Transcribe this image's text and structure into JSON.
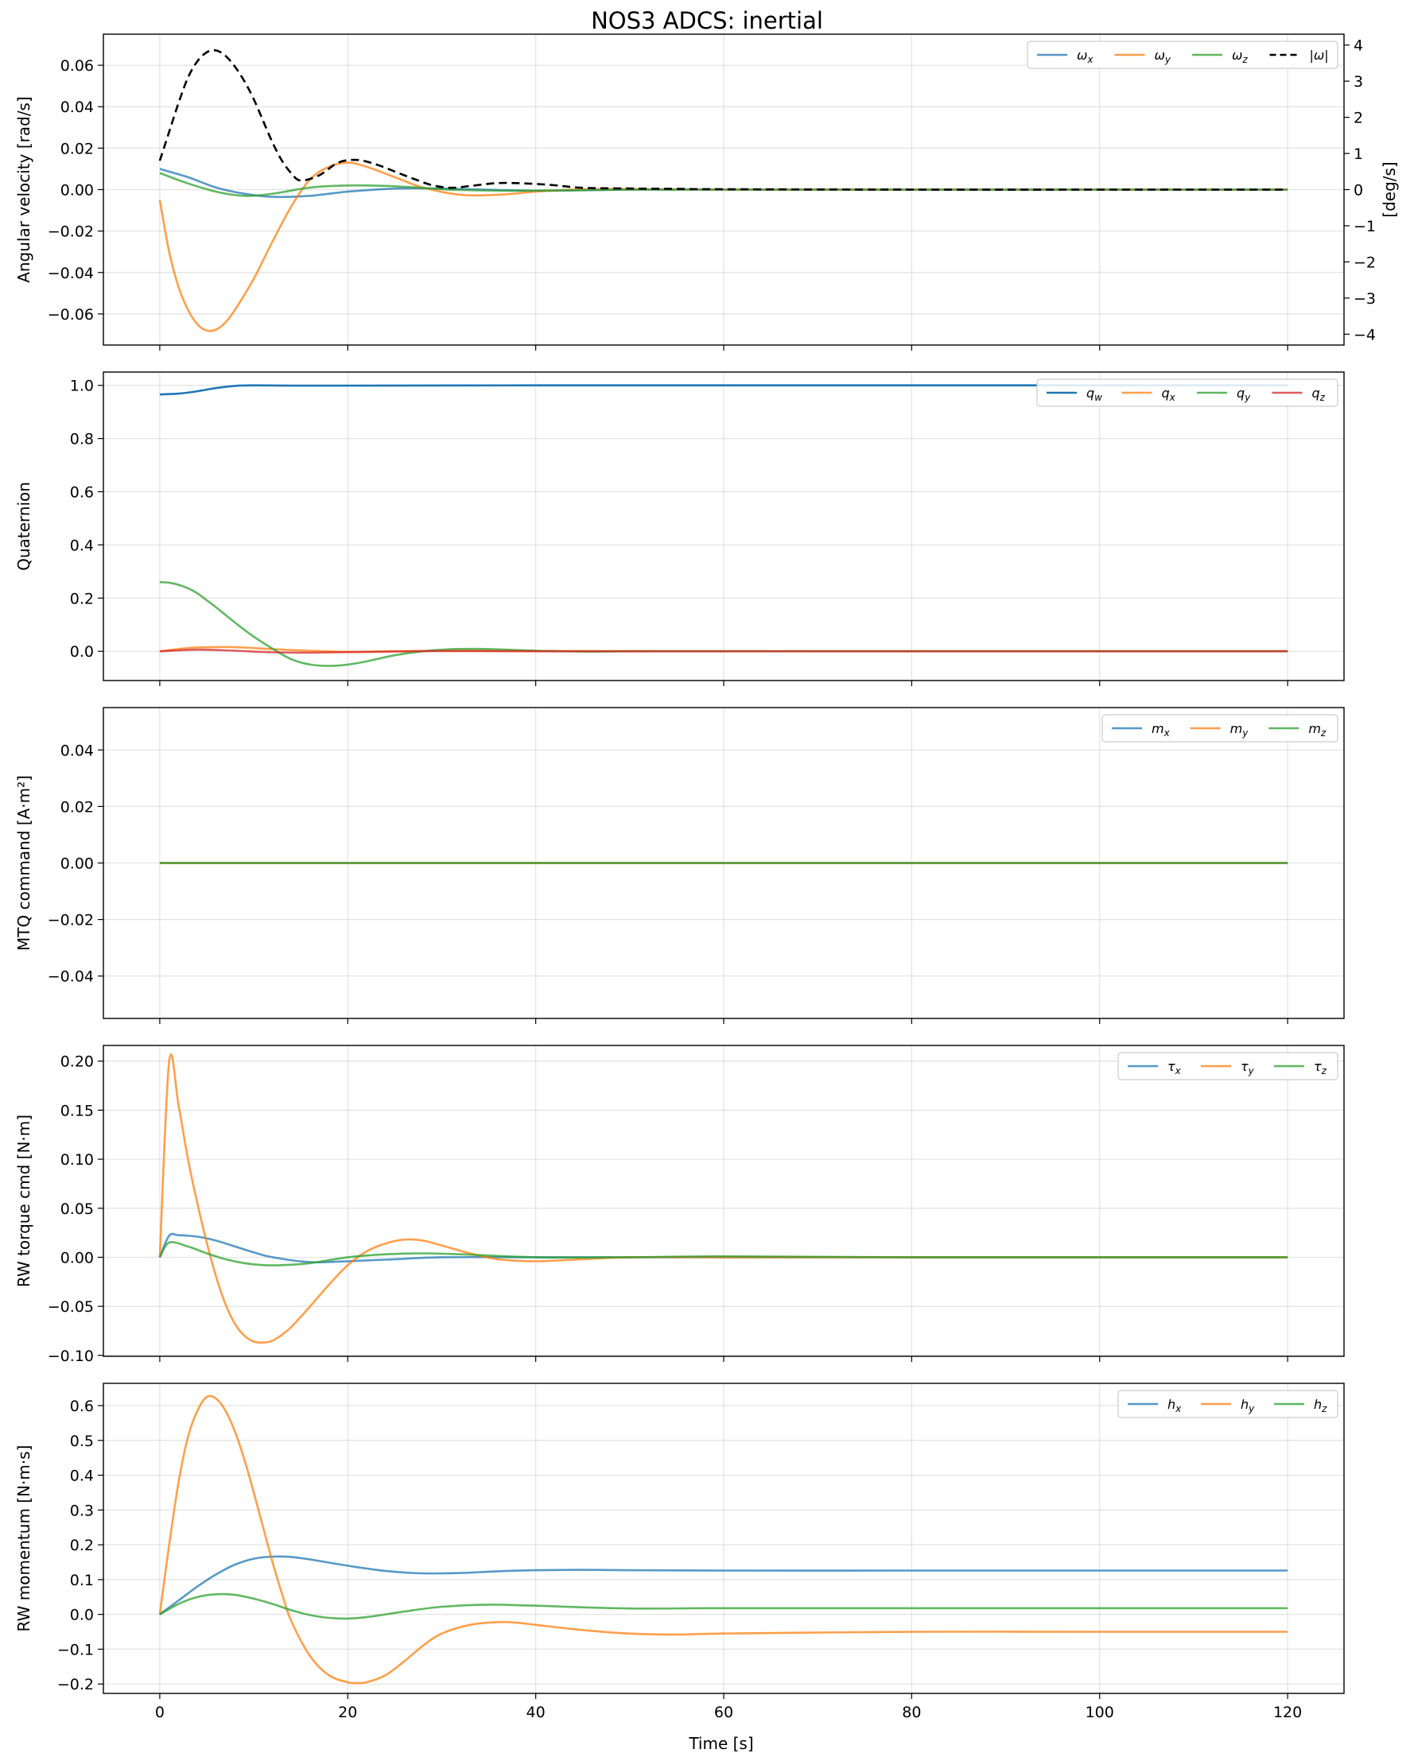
{
  "figure_title": "NOS3 ADCS: inertial",
  "xlabel": "Time [s]",
  "chart_data": [
    {
      "type": "line",
      "ylabel": "Angular velocity [rad/s]",
      "ylabel_right": "[deg/s]",
      "xlim": [
        -6,
        126
      ],
      "ylim": [
        -0.075,
        0.075
      ],
      "y2lim": [
        -4.3,
        4.3
      ],
      "xticks": [
        0,
        20,
        40,
        60,
        80,
        100,
        120
      ],
      "yticks": [
        -0.06,
        -0.04,
        -0.02,
        0.0,
        0.02,
        0.04,
        0.06
      ],
      "ytick_labels": [
        "−0.06",
        "−0.04",
        "−0.02",
        "0.00",
        "0.02",
        "0.04",
        "0.06"
      ],
      "y2ticks": [
        -4,
        -3,
        -2,
        -1,
        0,
        1,
        2,
        3,
        4
      ],
      "y2tick_labels": [
        "−4",
        "−3",
        "−2",
        "−1",
        "0",
        "1",
        "2",
        "3",
        "4"
      ],
      "grid": true,
      "legend": "top-right",
      "series": [
        {
          "name": "ω",
          "sub": "x",
          "color": "#1f77b4",
          "alpha": 0.75,
          "x": [
            0,
            3,
            6,
            9,
            12,
            16,
            20,
            25,
            30,
            40,
            50,
            60,
            80,
            100,
            120
          ],
          "y": [
            0.01,
            0.006,
            0.001,
            -0.002,
            -0.0035,
            -0.003,
            -0.001,
            0.0005,
            0.0005,
            -0.0005,
            0,
            0,
            0,
            0,
            0
          ]
        },
        {
          "name": "ω",
          "sub": "y",
          "color": "#ff7f0e",
          "alpha": 0.75,
          "x": [
            0,
            1,
            2,
            3,
            4,
            5,
            6,
            7,
            8,
            10,
            12,
            14,
            16,
            18,
            20,
            22,
            25,
            28,
            32,
            36,
            40,
            45,
            50,
            60,
            80,
            100,
            120
          ],
          "y": [
            -0.005,
            -0.03,
            -0.047,
            -0.058,
            -0.065,
            -0.068,
            -0.0675,
            -0.064,
            -0.058,
            -0.043,
            -0.025,
            -0.008,
            0.005,
            0.011,
            0.013,
            0.011,
            0.006,
            0.001,
            -0.0025,
            -0.0025,
            -0.001,
            0.0002,
            0.0003,
            0,
            0,
            0,
            0
          ]
        },
        {
          "name": "ω",
          "sub": "z",
          "color": "#2ca02c",
          "alpha": 0.75,
          "x": [
            0,
            3,
            6,
            9,
            12,
            16,
            20,
            24,
            28,
            32,
            40,
            50,
            60,
            80,
            100,
            120
          ],
          "y": [
            0.008,
            0.003,
            -0.001,
            -0.003,
            -0.002,
            0.001,
            0.002,
            0.0018,
            0.0008,
            -0.0002,
            -0.0005,
            0,
            0,
            0,
            0,
            0
          ]
        },
        {
          "name": "|ω|",
          "sub": "",
          "color": "#000000",
          "alpha": 1,
          "dashed": true,
          "axis": "right",
          "x": [
            0,
            1,
            2,
            3,
            4,
            5,
            6,
            7,
            8,
            9,
            10,
            11,
            12,
            13,
            14,
            15,
            17,
            19,
            21,
            23,
            25,
            27,
            29,
            31,
            33,
            36,
            39,
            42,
            45,
            50,
            55,
            60,
            80,
            100,
            120
          ],
          "y": [
            0.8,
            1.6,
            2.4,
            3.1,
            3.55,
            3.8,
            3.85,
            3.7,
            3.4,
            3.0,
            2.5,
            1.9,
            1.3,
            0.8,
            0.45,
            0.25,
            0.4,
            0.75,
            0.82,
            0.7,
            0.5,
            0.3,
            0.12,
            0.05,
            0.1,
            0.18,
            0.17,
            0.12,
            0.05,
            0.03,
            0.02,
            0.01,
            0,
            0,
            0
          ]
        }
      ]
    },
    {
      "type": "line",
      "ylabel": "Quaternion",
      "xlim": [
        -6,
        126
      ],
      "ylim": [
        -0.11,
        1.05
      ],
      "xticks": [
        0,
        20,
        40,
        60,
        80,
        100,
        120
      ],
      "yticks": [
        0.0,
        0.2,
        0.4,
        0.6,
        0.8,
        1.0
      ],
      "ytick_labels": [
        "0.0",
        "0.2",
        "0.4",
        "0.6",
        "0.8",
        "1.0"
      ],
      "grid": true,
      "legend": "top-right",
      "series": [
        {
          "name": "q",
          "sub": "w",
          "color": "#1f77b4",
          "alpha": 1,
          "x": [
            0,
            2,
            4,
            6,
            8,
            10,
            14,
            20,
            40,
            60,
            80,
            100,
            120
          ],
          "y": [
            0.966,
            0.969,
            0.978,
            0.99,
            0.998,
            1.0,
            0.999,
            0.999,
            1.0,
            1.0,
            1.0,
            1.0,
            1.0
          ]
        },
        {
          "name": "q",
          "sub": "x",
          "color": "#ff7f0e",
          "alpha": 0.75,
          "x": [
            0,
            3,
            6,
            9,
            12,
            16,
            20,
            25,
            30,
            40,
            60,
            80,
            100,
            120
          ],
          "y": [
            0,
            0.012,
            0.016,
            0.014,
            0.008,
            0.002,
            -0.002,
            0.0,
            0.002,
            0.001,
            0,
            0,
            0,
            0
          ]
        },
        {
          "name": "q",
          "sub": "y",
          "color": "#2ca02c",
          "alpha": 0.75,
          "x": [
            0,
            1,
            2,
            3,
            4,
            6,
            8,
            10,
            12,
            14,
            16,
            18,
            20,
            22,
            25,
            28,
            31,
            34,
            37,
            40,
            45,
            50,
            60,
            80,
            100,
            120
          ],
          "y": [
            0.26,
            0.258,
            0.25,
            0.237,
            0.218,
            0.165,
            0.108,
            0.055,
            0.01,
            -0.03,
            -0.05,
            -0.055,
            -0.05,
            -0.038,
            -0.015,
            0.0,
            0.008,
            0.009,
            0.006,
            0.002,
            -0.001,
            0,
            0,
            0,
            0,
            0
          ]
        },
        {
          "name": "q",
          "sub": "z",
          "color": "#d62728",
          "alpha": 0.75,
          "x": [
            0,
            4,
            8,
            12,
            16,
            20,
            30,
            40,
            60,
            80,
            100,
            120
          ],
          "y": [
            0,
            0.006,
            0.002,
            -0.004,
            -0.005,
            -0.003,
            0.001,
            0.0,
            0,
            0,
            0,
            0
          ]
        }
      ]
    },
    {
      "type": "line",
      "ylabel": "MTQ command [A·m²]",
      "xlim": [
        -6,
        126
      ],
      "ylim": [
        -0.055,
        0.055
      ],
      "xticks": [
        0,
        20,
        40,
        60,
        80,
        100,
        120
      ],
      "yticks": [
        -0.04,
        -0.02,
        0.0,
        0.02,
        0.04
      ],
      "ytick_labels": [
        "−0.04",
        "−0.02",
        "0.00",
        "0.02",
        "0.04"
      ],
      "grid": true,
      "legend": "top-right",
      "series": [
        {
          "name": "m",
          "sub": "x",
          "color": "#1f77b4",
          "alpha": 0.75,
          "x": [
            0,
            120
          ],
          "y": [
            0,
            0
          ]
        },
        {
          "name": "m",
          "sub": "y",
          "color": "#ff7f0e",
          "alpha": 0.75,
          "x": [
            0,
            120
          ],
          "y": [
            0,
            0
          ]
        },
        {
          "name": "m",
          "sub": "z",
          "color": "#2ca02c",
          "alpha": 0.75,
          "x": [
            0,
            120
          ],
          "y": [
            0,
            0
          ]
        }
      ]
    },
    {
      "type": "line",
      "ylabel": "RW torque cmd [N·m]",
      "xlim": [
        -6,
        126
      ],
      "ylim": [
        -0.101,
        0.216
      ],
      "xticks": [
        0,
        20,
        40,
        60,
        80,
        100,
        120
      ],
      "yticks": [
        -0.1,
        -0.05,
        0.0,
        0.05,
        0.1,
        0.15,
        0.2
      ],
      "ytick_labels": [
        "−0.10",
        "−0.05",
        "0.00",
        "0.05",
        "0.10",
        "0.15",
        "0.20"
      ],
      "grid": true,
      "legend": "top-right",
      "series": [
        {
          "name": "τ",
          "sub": "x",
          "color": "#1f77b4",
          "alpha": 0.75,
          "x": [
            0,
            1,
            2,
            4,
            6,
            8,
            10,
            12,
            16,
            20,
            25,
            30,
            40,
            50,
            60,
            80,
            100,
            120
          ],
          "y": [
            0,
            0.022,
            0.0225,
            0.021,
            0.017,
            0.011,
            0.005,
            0.0,
            -0.005,
            -0.004,
            -0.002,
            0.0,
            0.0,
            0,
            0,
            0,
            0,
            0
          ]
        },
        {
          "name": "τ",
          "sub": "y",
          "color": "#ff7f0e",
          "alpha": 0.75,
          "x": [
            0,
            1,
            2,
            3,
            4,
            5,
            6,
            7,
            8,
            9,
            10,
            11,
            12,
            13,
            14,
            16,
            18,
            20,
            22,
            24,
            26,
            28,
            30,
            33,
            36,
            40,
            45,
            50,
            60,
            80,
            100,
            120
          ],
          "y": [
            0,
            0.2,
            0.155,
            0.1,
            0.055,
            0.015,
            -0.02,
            -0.048,
            -0.068,
            -0.08,
            -0.086,
            -0.087,
            -0.085,
            -0.079,
            -0.071,
            -0.05,
            -0.028,
            -0.008,
            0.006,
            0.014,
            0.018,
            0.017,
            0.012,
            0.004,
            -0.002,
            -0.004,
            -0.002,
            0.0,
            0,
            0,
            0,
            0
          ]
        },
        {
          "name": "τ",
          "sub": "z",
          "color": "#2ca02c",
          "alpha": 0.75,
          "x": [
            0,
            1,
            3,
            5,
            7,
            9,
            11,
            13,
            16,
            20,
            24,
            28,
            32,
            40,
            50,
            60,
            80,
            100,
            120
          ],
          "y": [
            0,
            0.015,
            0.011,
            0.004,
            -0.002,
            -0.006,
            -0.008,
            -0.008,
            -0.006,
            0.0,
            0.003,
            0.004,
            0.003,
            0.0,
            0.0,
            0.001,
            0,
            0,
            0
          ]
        }
      ]
    },
    {
      "type": "line",
      "ylabel": "RW momentum [N·m·s]",
      "xlim": [
        -6,
        126
      ],
      "ylim": [
        -0.227,
        0.664
      ],
      "xticks": [
        0,
        20,
        40,
        60,
        80,
        100,
        120
      ],
      "xtick_labels": [
        "0",
        "20",
        "40",
        "60",
        "80",
        "100",
        "120"
      ],
      "yticks": [
        -0.2,
        -0.1,
        0.0,
        0.1,
        0.2,
        0.3,
        0.4,
        0.5,
        0.6
      ],
      "ytick_labels": [
        "−0.2",
        "−0.1",
        "0.0",
        "0.1",
        "0.2",
        "0.3",
        "0.4",
        "0.5",
        "0.6"
      ],
      "grid": true,
      "legend": "top-right",
      "series": [
        {
          "name": "h",
          "sub": "x",
          "color": "#1f77b4",
          "alpha": 0.75,
          "x": [
            0,
            2,
            4,
            6,
            8,
            10,
            12,
            14,
            16,
            20,
            24,
            28,
            32,
            36,
            40,
            45,
            50,
            60,
            80,
            100,
            120
          ],
          "y": [
            0,
            0.04,
            0.08,
            0.115,
            0.143,
            0.16,
            0.166,
            0.165,
            0.158,
            0.14,
            0.125,
            0.118,
            0.119,
            0.124,
            0.127,
            0.128,
            0.127,
            0.126,
            0.126,
            0.126,
            0.126
          ]
        },
        {
          "name": "h",
          "sub": "y",
          "color": "#ff7f0e",
          "alpha": 0.75,
          "x": [
            0,
            1,
            2,
            3,
            4,
            5,
            6,
            7,
            8,
            9,
            10,
            11,
            12,
            13,
            14,
            16,
            18,
            20,
            21,
            22,
            24,
            26,
            28,
            30,
            33,
            36,
            38,
            40,
            45,
            50,
            55,
            60,
            80,
            100,
            120
          ],
          "y": [
            0,
            0.2,
            0.38,
            0.51,
            0.585,
            0.625,
            0.62,
            0.585,
            0.525,
            0.445,
            0.35,
            0.25,
            0.15,
            0.06,
            -0.02,
            -0.12,
            -0.175,
            -0.195,
            -0.197,
            -0.195,
            -0.175,
            -0.135,
            -0.09,
            -0.055,
            -0.03,
            -0.022,
            -0.024,
            -0.03,
            -0.045,
            -0.055,
            -0.058,
            -0.055,
            -0.05,
            -0.05,
            -0.05
          ]
        },
        {
          "name": "h",
          "sub": "z",
          "color": "#2ca02c",
          "alpha": 0.75,
          "x": [
            0,
            2,
            4,
            6,
            8,
            10,
            12,
            14,
            16,
            18,
            20,
            22,
            26,
            30,
            35,
            40,
            50,
            60,
            80,
            100,
            120
          ],
          "y": [
            0,
            0.03,
            0.05,
            0.058,
            0.056,
            0.045,
            0.03,
            0.012,
            -0.002,
            -0.01,
            -0.012,
            -0.008,
            0.008,
            0.022,
            0.028,
            0.025,
            0.017,
            0.018,
            0.018,
            0.018,
            0.018
          ]
        }
      ]
    }
  ]
}
